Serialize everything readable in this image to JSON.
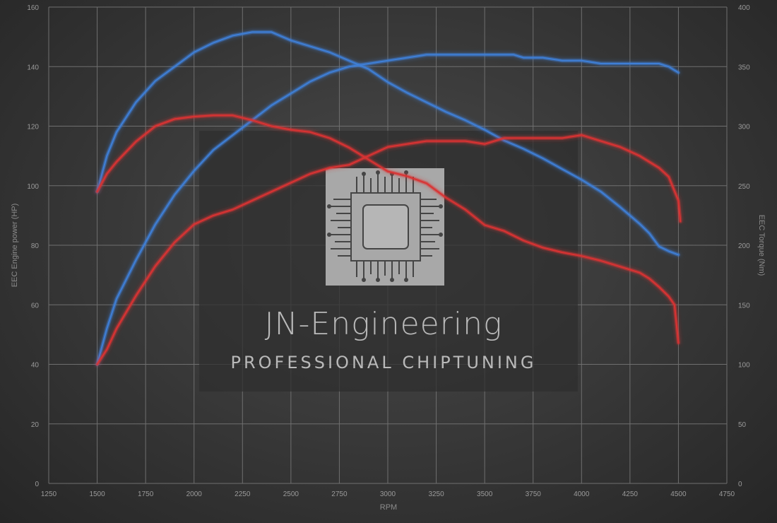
{
  "chart_data": {
    "type": "line",
    "xlabel": "RPM",
    "ylabel_left": "EEC Engine power (HP)",
    "ylabel_right": "EEC Torque (Nm)",
    "xlim": [
      1250,
      4750
    ],
    "ylim_left": [
      0,
      160
    ],
    "ylim_right": [
      0,
      400
    ],
    "x_ticks": [
      1250,
      1500,
      1750,
      2000,
      2250,
      2500,
      2750,
      3000,
      3250,
      3500,
      3750,
      4000,
      4250,
      4500,
      4750
    ],
    "y_ticks_left": [
      0,
      20,
      40,
      60,
      80,
      100,
      120,
      140,
      160
    ],
    "y_ticks_right": [
      0,
      50,
      100,
      150,
      200,
      250,
      300,
      350,
      400
    ],
    "grid": true,
    "series": [
      {
        "axis": "left",
        "color": "#3f7fd6",
        "points": [
          [
            1500,
            40
          ],
          [
            1550,
            52
          ],
          [
            1600,
            62
          ],
          [
            1700,
            75
          ],
          [
            1800,
            87
          ],
          [
            1900,
            97
          ],
          [
            2000,
            105
          ],
          [
            2100,
            112
          ],
          [
            2200,
            117
          ],
          [
            2300,
            122
          ],
          [
            2400,
            127
          ],
          [
            2500,
            131
          ],
          [
            2600,
            135
          ],
          [
            2700,
            138
          ],
          [
            2800,
            140
          ],
          [
            2900,
            141
          ],
          [
            3000,
            142
          ],
          [
            3100,
            143
          ],
          [
            3200,
            144
          ],
          [
            3300,
            144
          ],
          [
            3400,
            144
          ],
          [
            3500,
            144
          ],
          [
            3600,
            144
          ],
          [
            3650,
            144
          ],
          [
            3700,
            143
          ],
          [
            3800,
            143
          ],
          [
            3900,
            142
          ],
          [
            4000,
            142
          ],
          [
            4100,
            141
          ],
          [
            4200,
            141
          ],
          [
            4300,
            141
          ],
          [
            4400,
            141
          ],
          [
            4450,
            140
          ],
          [
            4500,
            138
          ]
        ]
      },
      {
        "axis": "right",
        "color": "#3f7fd6",
        "points": [
          [
            1500,
            245
          ],
          [
            1550,
            275
          ],
          [
            1600,
            295
          ],
          [
            1700,
            320
          ],
          [
            1800,
            338
          ],
          [
            1900,
            350
          ],
          [
            2000,
            362
          ],
          [
            2100,
            370
          ],
          [
            2200,
            376
          ],
          [
            2300,
            379
          ],
          [
            2400,
            379
          ],
          [
            2500,
            372
          ],
          [
            2600,
            367
          ],
          [
            2700,
            362
          ],
          [
            2800,
            355
          ],
          [
            2900,
            348
          ],
          [
            3000,
            337
          ],
          [
            3100,
            328
          ],
          [
            3200,
            320
          ],
          [
            3300,
            312
          ],
          [
            3400,
            305
          ],
          [
            3500,
            297
          ],
          [
            3600,
            288
          ],
          [
            3700,
            281
          ],
          [
            3800,
            273
          ],
          [
            3900,
            264
          ],
          [
            4000,
            255
          ],
          [
            4100,
            245
          ],
          [
            4200,
            232
          ],
          [
            4300,
            218
          ],
          [
            4350,
            210
          ],
          [
            4400,
            199
          ],
          [
            4450,
            195
          ],
          [
            4500,
            192
          ]
        ]
      },
      {
        "axis": "left",
        "color": "#d93333",
        "points": [
          [
            1500,
            40
          ],
          [
            1550,
            45
          ],
          [
            1600,
            52
          ],
          [
            1700,
            63
          ],
          [
            1800,
            73
          ],
          [
            1900,
            81
          ],
          [
            2000,
            87
          ],
          [
            2100,
            90
          ],
          [
            2200,
            92
          ],
          [
            2300,
            95
          ],
          [
            2400,
            98
          ],
          [
            2500,
            101
          ],
          [
            2600,
            104
          ],
          [
            2700,
            106
          ],
          [
            2800,
            107
          ],
          [
            2900,
            110
          ],
          [
            3000,
            113
          ],
          [
            3100,
            114
          ],
          [
            3200,
            115
          ],
          [
            3300,
            115
          ],
          [
            3400,
            115
          ],
          [
            3500,
            114
          ],
          [
            3600,
            116
          ],
          [
            3700,
            116
          ],
          [
            3800,
            116
          ],
          [
            3900,
            116
          ],
          [
            4000,
            117
          ],
          [
            4100,
            115
          ],
          [
            4200,
            113
          ],
          [
            4300,
            110
          ],
          [
            4400,
            106
          ],
          [
            4450,
            103
          ],
          [
            4500,
            95
          ],
          [
            4510,
            88
          ]
        ]
      },
      {
        "axis": "right",
        "color": "#d93333",
        "points": [
          [
            1500,
            245
          ],
          [
            1550,
            260
          ],
          [
            1600,
            270
          ],
          [
            1700,
            287
          ],
          [
            1800,
            300
          ],
          [
            1900,
            306
          ],
          [
            2000,
            308
          ],
          [
            2100,
            309
          ],
          [
            2200,
            309
          ],
          [
            2300,
            305
          ],
          [
            2400,
            300
          ],
          [
            2500,
            297
          ],
          [
            2600,
            295
          ],
          [
            2700,
            290
          ],
          [
            2800,
            282
          ],
          [
            2900,
            272
          ],
          [
            3000,
            262
          ],
          [
            3100,
            258
          ],
          [
            3200,
            252
          ],
          [
            3300,
            240
          ],
          [
            3400,
            230
          ],
          [
            3500,
            217
          ],
          [
            3600,
            212
          ],
          [
            3700,
            204
          ],
          [
            3800,
            198
          ],
          [
            3900,
            194
          ],
          [
            4000,
            191
          ],
          [
            4100,
            187
          ],
          [
            4200,
            182
          ],
          [
            4300,
            177
          ],
          [
            4350,
            172
          ],
          [
            4400,
            165
          ],
          [
            4450,
            157
          ],
          [
            4480,
            150
          ],
          [
            4500,
            118
          ]
        ]
      }
    ]
  },
  "watermark": {
    "title": "JN-Engineering",
    "subtitle": "PROFESSIONAL CHIPTUNING"
  }
}
